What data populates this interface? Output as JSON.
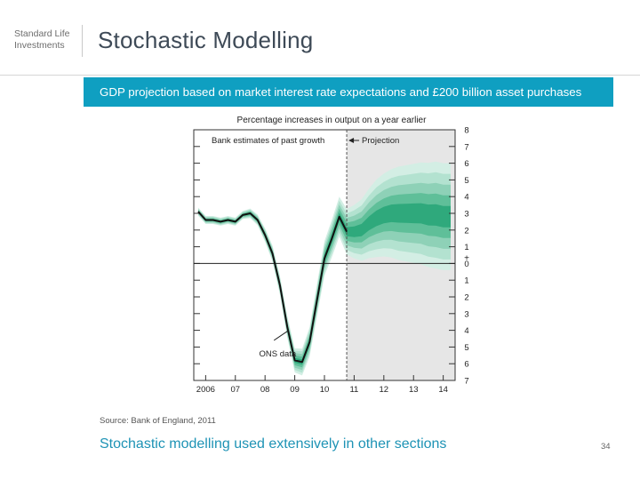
{
  "header": {
    "logo_line1": "Standard Life",
    "logo_line2": "Investments",
    "title": "Stochastic Modelling"
  },
  "banner": {
    "text": "GDP projection based on market interest rate expectations and £200 billion asset purchases"
  },
  "footer": {
    "source": "Source: Bank of England, 2011",
    "subtitle": "Stochastic modelling used extensively in other sections",
    "page_number": "34"
  },
  "colors": {
    "accent": "#0f9fc1",
    "fan_dark": "#1a9a70",
    "fan_light": "#d3eee4",
    "projection_shade": "#e6e6e6"
  },
  "chart_data": {
    "type": "area",
    "title": "Percentage increases in output on a year earlier",
    "annotations": [
      "Bank estimates of past growth",
      "Projection",
      "ONS data"
    ],
    "ylim": [
      -7,
      8
    ],
    "y_tick_labels": [
      "8",
      "7",
      "6",
      "5",
      "4",
      "3",
      "2",
      "1",
      "0",
      "1",
      "2",
      "3",
      "4",
      "5",
      "6",
      "7"
    ],
    "y_ticks": [
      8,
      7,
      6,
      5,
      4,
      3,
      2,
      1,
      0,
      -1,
      -2,
      -3,
      -4,
      -5,
      -6,
      -7
    ],
    "x_tick_labels": [
      "2006",
      "07",
      "08",
      "09",
      "10",
      "11",
      "12",
      "13",
      "14"
    ],
    "x_ticks": [
      2006,
      2007,
      2008,
      2009,
      2010,
      2011,
      2012,
      2013,
      2014
    ],
    "xlim": [
      2005.6,
      2014.4
    ],
    "projection_start": 2010.75,
    "zero_line": true,
    "ons_data": {
      "x": [
        2005.75,
        2006.0,
        2006.25,
        2006.5,
        2006.75,
        2007.0,
        2007.25,
        2007.5,
        2007.75,
        2008.0,
        2008.25,
        2008.5,
        2008.75,
        2009.0,
        2009.25,
        2009.5,
        2009.75,
        2010.0,
        2010.25,
        2010.5,
        2010.75
      ],
      "y": [
        3.1,
        2.6,
        2.6,
        2.5,
        2.6,
        2.5,
        2.9,
        3.0,
        2.6,
        1.7,
        0.6,
        -1.3,
        -3.8,
        -5.8,
        -5.9,
        -4.7,
        -2.2,
        0.3,
        1.5,
        2.8,
        1.9
      ]
    },
    "fan_center": {
      "x": [
        2005.75,
        2006.0,
        2006.25,
        2006.5,
        2006.75,
        2007.0,
        2007.25,
        2007.5,
        2007.75,
        2008.0,
        2008.25,
        2008.5,
        2008.75,
        2009.0,
        2009.25,
        2009.5,
        2009.75,
        2010.0,
        2010.25,
        2010.5,
        2010.75,
        2011.0,
        2011.25,
        2011.5,
        2011.75,
        2012.0,
        2012.25,
        2012.5,
        2012.75,
        2013.0,
        2013.25,
        2013.5,
        2013.75,
        2014.0,
        2014.25
      ],
      "y": [
        3.1,
        2.6,
        2.6,
        2.5,
        2.6,
        2.5,
        2.9,
        3.0,
        2.6,
        1.7,
        0.6,
        -1.3,
        -3.8,
        -5.8,
        -5.9,
        -4.7,
        -2.2,
        0.3,
        1.5,
        2.8,
        1.9,
        1.9,
        2.0,
        2.4,
        2.7,
        2.9,
        3.0,
        3.0,
        3.0,
        3.0,
        3.0,
        2.9,
        2.9,
        2.8,
        2.8
      ]
    },
    "fan_spread": [
      0.15,
      0.15,
      0.15,
      0.15,
      0.15,
      0.15,
      0.15,
      0.18,
      0.2,
      0.25,
      0.3,
      0.35,
      0.4,
      0.45,
      0.5,
      0.55,
      0.6,
      0.65,
      0.7,
      0.75,
      0.85,
      1.0,
      1.15,
      1.3,
      1.45,
      1.55,
      1.65,
      1.75,
      1.8,
      1.85,
      1.9,
      1.95,
      2.0,
      2.0,
      2.0
    ]
  }
}
